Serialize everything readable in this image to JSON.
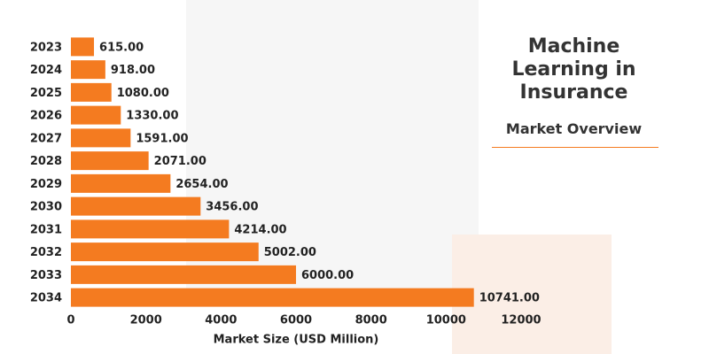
{
  "chart_data": {
    "type": "bar",
    "orientation": "horizontal",
    "title": "Machine Learning in Insurance",
    "subtitle": "Market Overview",
    "x_label": "Market Size (USD Million)",
    "categories": [
      "2023",
      "2024",
      "2025",
      "2026",
      "2027",
      "2028",
      "2029",
      "2030",
      "2031",
      "2032",
      "2033",
      "2034"
    ],
    "values": [
      615,
      918,
      1080,
      1330,
      1591,
      2071,
      2654,
      3456,
      4214,
      5002,
      6000,
      10741
    ],
    "value_labels": [
      "615.00",
      "918.00",
      "1080.00",
      "1330.00",
      "1591.00",
      "2071.00",
      "2654.00",
      "3456.00",
      "4214.00",
      "5002.00",
      "6000.00",
      "10741.00"
    ],
    "color": "#f47b20",
    "xlim": [
      0,
      12000
    ],
    "xticks": [
      0,
      2000,
      4000,
      6000,
      8000,
      10000,
      12000
    ]
  }
}
